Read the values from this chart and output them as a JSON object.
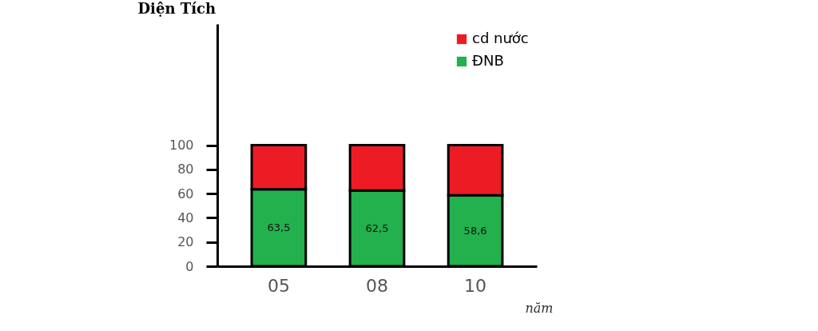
{
  "chart_data": {
    "type": "bar",
    "stacked": true,
    "xlabel": "năm",
    "ylabel": "Diện Tích",
    "categories": [
      "05",
      "08",
      "10"
    ],
    "series": [
      {
        "name": "ĐNB",
        "color": "#22b14c",
        "values": [
          63.5,
          62.5,
          58.6
        ],
        "value_labels": [
          "63,5",
          "62,5",
          "58,6"
        ]
      },
      {
        "name": "cd nước",
        "color": "#ed1c24",
        "values": [
          36.5,
          37.5,
          41.4
        ]
      }
    ],
    "ylim": [
      0,
      200
    ],
    "yticks": [
      0,
      20,
      40,
      60,
      80,
      100
    ],
    "grid": false,
    "legend": "top right"
  }
}
